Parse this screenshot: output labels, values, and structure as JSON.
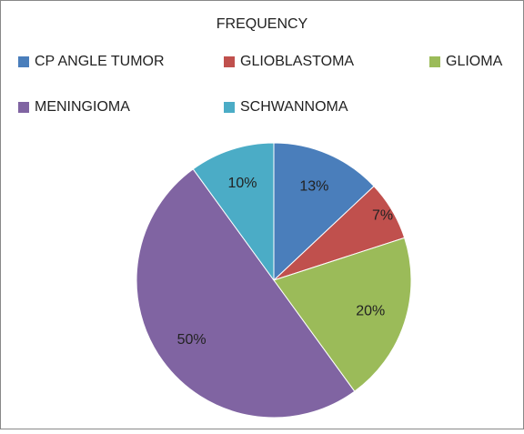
{
  "chart_data": {
    "type": "pie",
    "title": "FREQUENCY",
    "categories": [
      "CP ANGLE TUMOR",
      "GLIOBLASTOMA",
      "GLIOMA",
      "MENINGIOMA",
      "SCHWANNOMA"
    ],
    "values": [
      13,
      7,
      20,
      50,
      10
    ],
    "value_labels": [
      "13%",
      "7%",
      "20%",
      "50%",
      "10%"
    ],
    "colors": [
      "#4a7ebb",
      "#c0504d",
      "#9bbb59",
      "#8064a2",
      "#4bacc6"
    ],
    "legend": "top"
  }
}
